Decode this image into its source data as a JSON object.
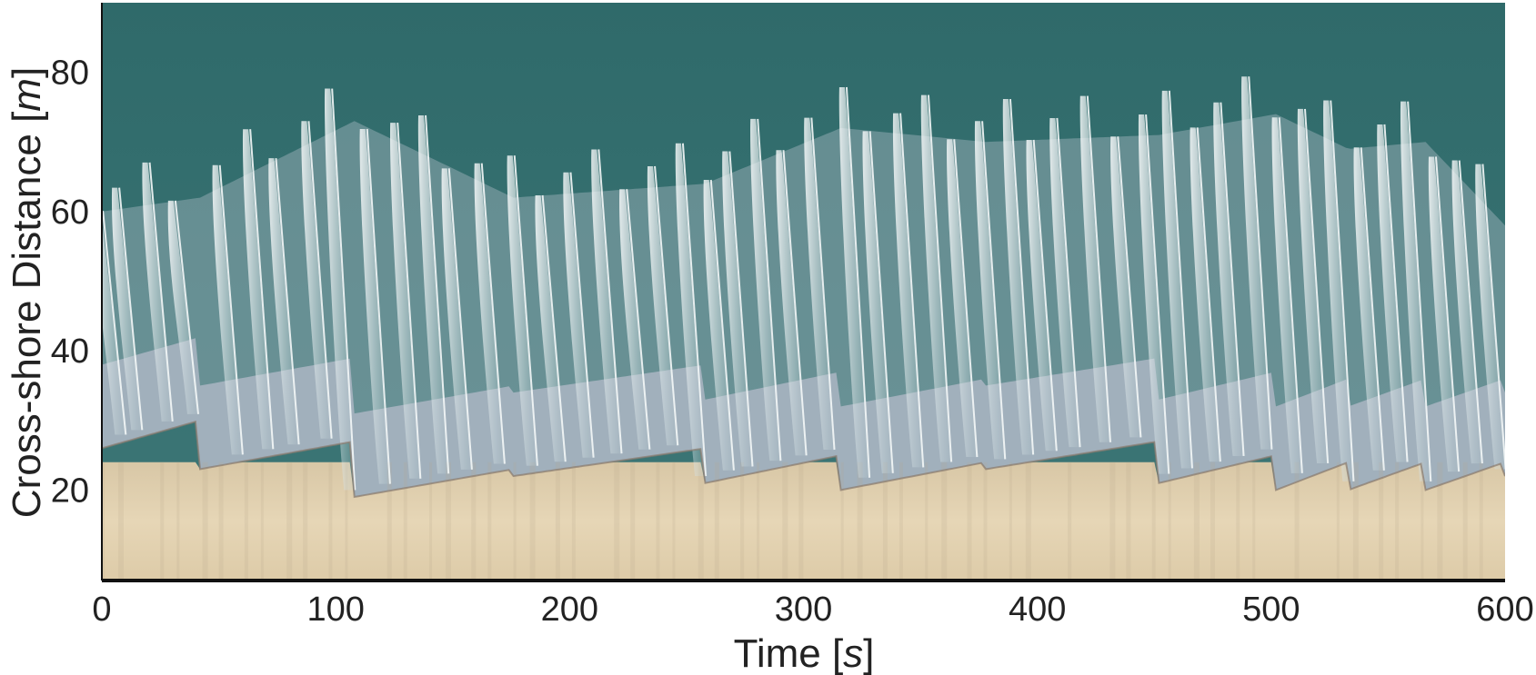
{
  "chart_data": {
    "type": "heatmap",
    "description_kind": "timestack image",
    "x_axis": {
      "label_text": "Time [",
      "label_unit": "s",
      "label_close": "]",
      "range": [
        0,
        600
      ],
      "ticks": [
        0,
        100,
        200,
        300,
        400,
        500,
        600
      ],
      "tick_labels": [
        "0",
        "100",
        "200",
        "300",
        "400",
        "500",
        "600"
      ]
    },
    "y_axis": {
      "label_text": "Cross-shore Distance [",
      "label_unit": "m",
      "label_close": "]",
      "range": [
        7,
        90
      ],
      "ticks": [
        20,
        40,
        60,
        80
      ],
      "tick_labels": [
        "20",
        "40",
        "60",
        "80"
      ]
    },
    "colors": {
      "water": "#356d6d",
      "foam": "#dfeaec",
      "swash": "#a7b4c0",
      "sand": "#e2d2b1",
      "shoreline": "#8a7a6e",
      "axis": "#111111"
    },
    "swash_events": [
      {
        "t": 0,
        "runup": 26,
        "breakpoint": 60
      },
      {
        "t": 42,
        "runup": 23,
        "breakpoint": 62
      },
      {
        "t": 108,
        "runup": 19,
        "breakpoint": 73
      },
      {
        "t": 176,
        "runup": 22,
        "breakpoint": 62
      },
      {
        "t": 258,
        "runup": 21,
        "breakpoint": 64
      },
      {
        "t": 316,
        "runup": 20,
        "breakpoint": 72
      },
      {
        "t": 378,
        "runup": 23,
        "breakpoint": 70
      },
      {
        "t": 452,
        "runup": 21,
        "breakpoint": 71
      },
      {
        "t": 502,
        "runup": 20,
        "breakpoint": 74
      },
      {
        "t": 533,
        "runup": 20,
        "breakpoint": 69
      },
      {
        "t": 566,
        "runup": 20,
        "breakpoint": 70
      },
      {
        "t": 600,
        "runup": 22,
        "breakpoint": 58
      }
    ],
    "wave_arrivals": [
      2,
      9,
      22,
      33,
      52,
      65,
      76,
      90,
      100,
      115,
      128,
      140,
      150,
      164,
      178,
      190,
      202,
      214,
      226,
      238,
      250,
      262,
      270,
      282,
      293,
      305,
      320,
      330,
      343,
      355,
      366,
      378,
      390,
      400,
      410,
      423,
      436,
      448,
      458,
      470,
      480,
      492,
      505,
      516,
      527,
      540,
      550,
      560,
      572,
      582,
      592
    ]
  }
}
